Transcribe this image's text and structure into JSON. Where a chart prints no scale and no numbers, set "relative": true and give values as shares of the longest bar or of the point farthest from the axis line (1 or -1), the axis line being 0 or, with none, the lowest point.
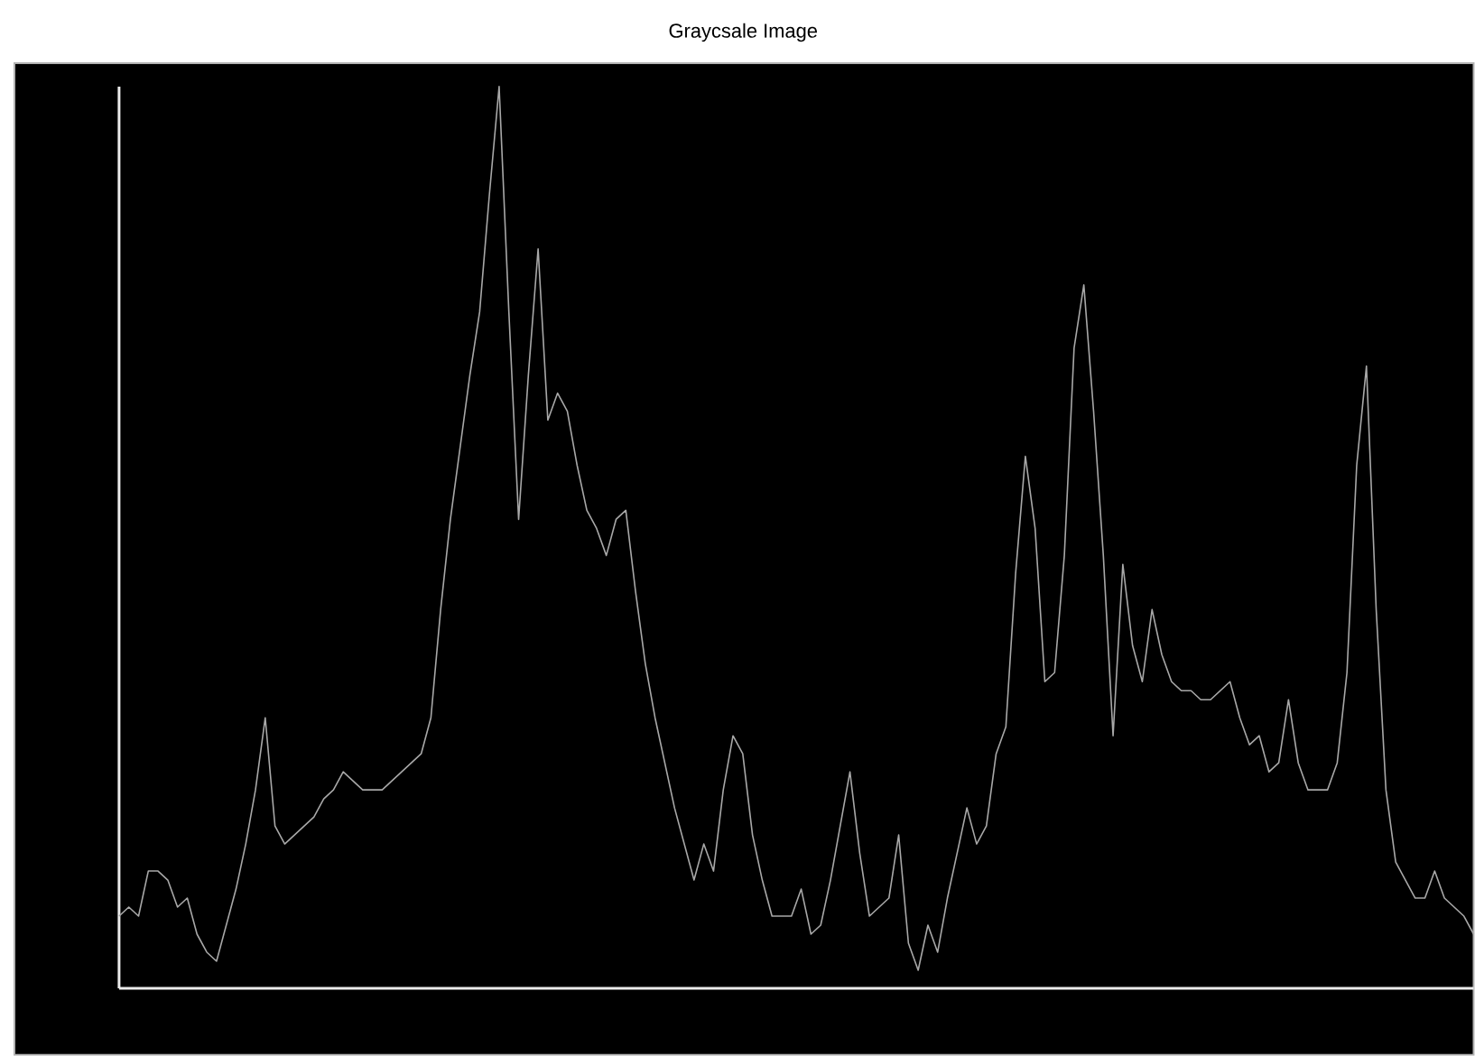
{
  "chart_data": {
    "type": "line",
    "title": "Graycsale Image",
    "relative": true,
    "color": "#a8a8a8",
    "categories": [
      null,
      null,
      null,
      null,
      null,
      null,
      null,
      null,
      null,
      null,
      null,
      null,
      null,
      null,
      null,
      null,
      null,
      null,
      null,
      null,
      null,
      null,
      null,
      null,
      null,
      null,
      null,
      null,
      null,
      null,
      null,
      null,
      null,
      null,
      null,
      null,
      null,
      null,
      null,
      null,
      null,
      null,
      null,
      null,
      null,
      null,
      null,
      null,
      null,
      null,
      null,
      null,
      null,
      null,
      null,
      null,
      null,
      null,
      null,
      null,
      null,
      null,
      null,
      null,
      null,
      null,
      null,
      null,
      null,
      null,
      null,
      null,
      null,
      null,
      null,
      null,
      null,
      null,
      null,
      null,
      null,
      null,
      null,
      null,
      null,
      null,
      null,
      null,
      null,
      null,
      null,
      null,
      null,
      null,
      null,
      null,
      null,
      null,
      null,
      null,
      null,
      null,
      null,
      null,
      null,
      null,
      null,
      null,
      null,
      null,
      null,
      null,
      null,
      null,
      null,
      null,
      null,
      null,
      null,
      null,
      null,
      null,
      null,
      null,
      null,
      null,
      null,
      null,
      null,
      null,
      null,
      null,
      null,
      null,
      null,
      null,
      null,
      null,
      null,
      null
    ],
    "values": [
      0.08,
      0.09,
      0.08,
      0.13,
      0.13,
      0.12,
      0.09,
      0.1,
      0.06,
      0.04,
      0.03,
      0.07,
      0.11,
      0.16,
      0.22,
      0.3,
      0.18,
      0.16,
      0.17,
      0.18,
      0.19,
      0.21,
      0.22,
      0.24,
      0.23,
      0.22,
      0.22,
      0.22,
      0.23,
      0.24,
      0.25,
      0.26,
      0.3,
      0.42,
      0.52,
      0.6,
      0.68,
      0.75,
      0.88,
      1.0,
      0.75,
      0.52,
      0.68,
      0.82,
      0.63,
      0.66,
      0.64,
      0.58,
      0.53,
      0.51,
      0.48,
      0.52,
      0.53,
      0.44,
      0.36,
      0.3,
      0.25,
      0.2,
      0.16,
      0.12,
      0.16,
      0.13,
      0.22,
      0.28,
      0.26,
      0.17,
      0.12,
      0.08,
      0.08,
      0.08,
      0.11,
      0.06,
      0.07,
      0.12,
      0.18,
      0.24,
      0.15,
      0.08,
      0.09,
      0.1,
      0.17,
      0.05,
      0.02,
      0.07,
      0.04,
      0.1,
      0.15,
      0.2,
      0.16,
      0.18,
      0.26,
      0.29,
      0.46,
      0.59,
      0.51,
      0.34,
      0.35,
      0.48,
      0.71,
      0.78,
      0.64,
      0.48,
      0.28,
      0.47,
      0.38,
      0.34,
      0.42,
      0.37,
      0.34,
      0.33,
      0.33,
      0.32,
      0.32,
      0.33,
      0.34,
      0.3,
      0.27,
      0.28,
      0.24,
      0.25,
      0.32,
      0.25,
      0.22,
      0.22,
      0.22,
      0.25,
      0.35,
      0.58,
      0.69,
      0.42,
      0.22,
      0.14,
      0.12,
      0.1,
      0.1,
      0.13,
      0.1,
      0.09,
      0.08,
      0.06
    ]
  }
}
